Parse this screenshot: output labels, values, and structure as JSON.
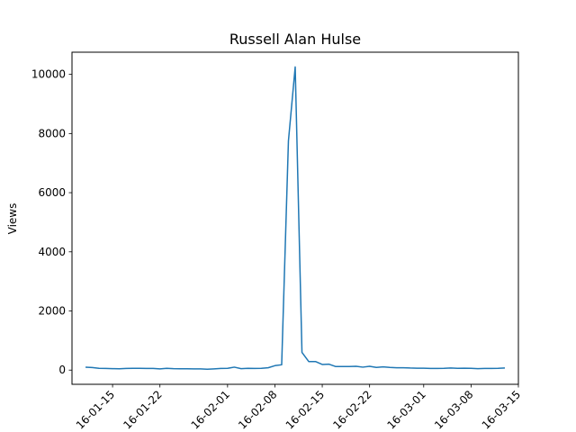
{
  "chart_data": {
    "type": "line",
    "title": "Russell Alan Hulse",
    "xlabel": "",
    "ylabel": "Views",
    "xlim": [
      "2016-01-09",
      "2016-03-15"
    ],
    "ylim": [
      -480,
      10750
    ],
    "x_ticks": [
      "2016-01-15",
      "2016-01-22",
      "2016-02-01",
      "2016-02-08",
      "2016-02-15",
      "2016-02-22",
      "2016-03-01",
      "2016-03-08",
      "2016-03-15"
    ],
    "x_tick_labels": [
      "16-01-15",
      "16-01-22",
      "16-02-01",
      "16-02-08",
      "16-02-15",
      "16-02-22",
      "16-03-01",
      "16-03-08",
      "16-03-15"
    ],
    "y_ticks": [
      0,
      2000,
      4000,
      6000,
      8000,
      10000
    ],
    "y_tick_labels": [
      "0",
      "2000",
      "4000",
      "6000",
      "8000",
      "10000"
    ],
    "grid": false,
    "series": [
      {
        "name": "",
        "color": "#1f77b4",
        "x": [
          "2016-01-11",
          "2016-01-12",
          "2016-01-13",
          "2016-01-14",
          "2016-01-15",
          "2016-01-16",
          "2016-01-17",
          "2016-01-18",
          "2016-01-19",
          "2016-01-20",
          "2016-01-21",
          "2016-01-22",
          "2016-01-23",
          "2016-01-24",
          "2016-01-25",
          "2016-01-26",
          "2016-01-27",
          "2016-01-28",
          "2016-01-29",
          "2016-01-30",
          "2016-01-31",
          "2016-02-01",
          "2016-02-02",
          "2016-02-03",
          "2016-02-04",
          "2016-02-05",
          "2016-02-06",
          "2016-02-07",
          "2016-02-08",
          "2016-02-09",
          "2016-02-10",
          "2016-02-11",
          "2016-02-12",
          "2016-02-13",
          "2016-02-14",
          "2016-02-15",
          "2016-02-16",
          "2016-02-17",
          "2016-02-18",
          "2016-02-19",
          "2016-02-20",
          "2016-02-21",
          "2016-02-22",
          "2016-02-23",
          "2016-02-24",
          "2016-02-25",
          "2016-02-26",
          "2016-02-27",
          "2016-02-28",
          "2016-02-29",
          "2016-03-01",
          "2016-03-02",
          "2016-03-03",
          "2016-03-04",
          "2016-03-05",
          "2016-03-06",
          "2016-03-07",
          "2016-03-08",
          "2016-03-09",
          "2016-03-10",
          "2016-03-11",
          "2016-03-12",
          "2016-03-13"
        ],
        "values": [
          100,
          85,
          60,
          55,
          50,
          45,
          55,
          60,
          60,
          55,
          55,
          40,
          60,
          50,
          45,
          45,
          40,
          40,
          30,
          40,
          55,
          60,
          100,
          50,
          60,
          55,
          60,
          80,
          150,
          180,
          7750,
          10250,
          600,
          290,
          290,
          190,
          200,
          120,
          120,
          120,
          130,
          100,
          130,
          90,
          110,
          90,
          80,
          80,
          70,
          65,
          65,
          55,
          55,
          60,
          70,
          60,
          65,
          60,
          50,
          55,
          55,
          60,
          70
        ]
      }
    ]
  }
}
